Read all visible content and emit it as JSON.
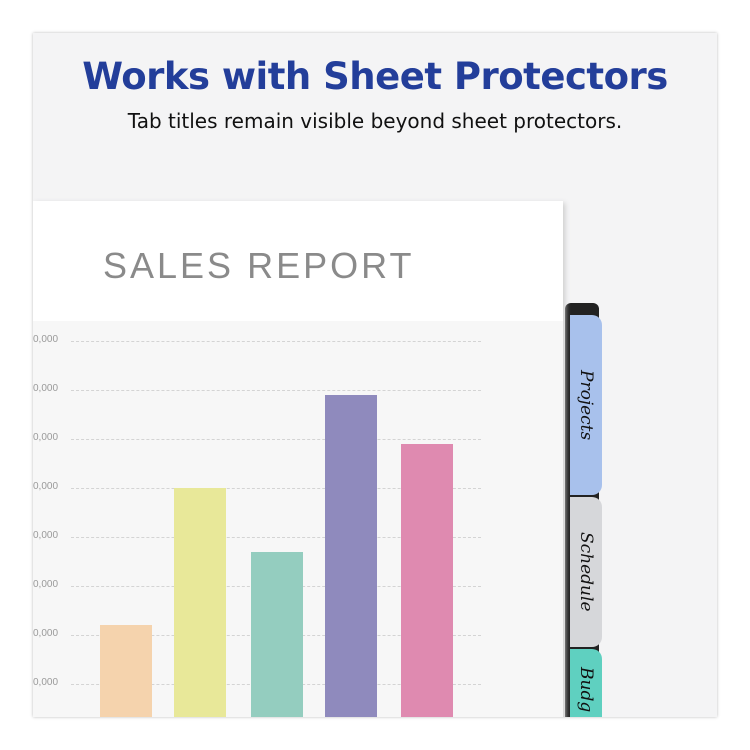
{
  "headline": "Works with Sheet Protectors",
  "subline": "Tab titles remain visible beyond sheet protectors.",
  "tabs": [
    {
      "label": "Projects",
      "color": "#a8c1ec"
    },
    {
      "label": "Schedule",
      "color": "#d6d7da"
    },
    {
      "label": "Budg",
      "color": "#5fd0c0"
    }
  ],
  "chart_data": {
    "type": "bar",
    "title": "SALES REPORT",
    "tick_labels": [
      "0,000",
      "0,000",
      "0,000",
      "0,000",
      "0,000",
      "0,000",
      "0,000",
      "0,000"
    ],
    "grid": true,
    "values": [
      2.2,
      5.0,
      3.7,
      6.9,
      5.9
    ],
    "ylim": [
      0,
      8
    ],
    "colors": [
      "#f5d3ad",
      "#e8e899",
      "#94cdbf",
      "#8f8abd",
      "#df8ab0"
    ]
  }
}
